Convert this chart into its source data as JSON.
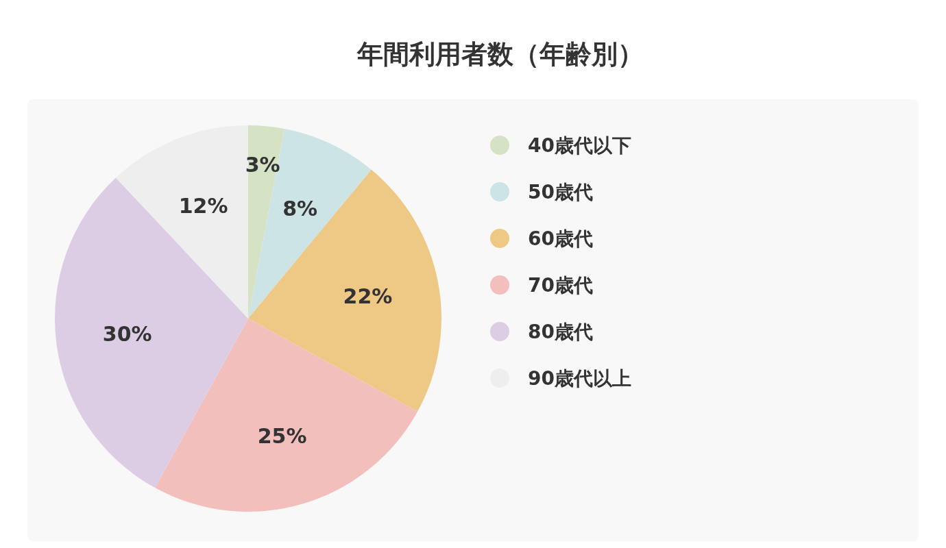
{
  "chart_data": {
    "type": "pie",
    "title": "年間利用者数（年齢別）",
    "categories": [
      "40歳代以下",
      "50歳代",
      "60歳代",
      "70歳代",
      "80歳代",
      "90歳代以上"
    ],
    "values": [
      3,
      8,
      22,
      25,
      30,
      12
    ],
    "colors": [
      "#d5e2c3",
      "#cde4e6",
      "#eec986",
      "#f2bfbc",
      "#dccde4",
      "#eeeeee"
    ],
    "value_labels": [
      "3%",
      "8%",
      "22%",
      "25%",
      "30%",
      "12%"
    ],
    "legend": "right"
  }
}
